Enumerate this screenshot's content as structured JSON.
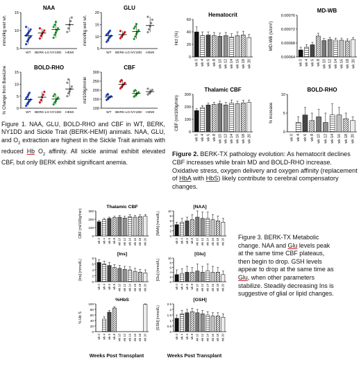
{
  "figure1": {
    "caption": "Figure 1.  NAA, GLU, BOLD-RHO and CBF in WT, BERK, NY1DD and Sickle Trait (BERK-HEMI) animals. NAA, GLU, and O2 extraction are highest in the Sickle Trait animals with reduced Hb O2 affinity.  All sickle animal exhibit elevated CBF, but only BERK exhibit significant anemia.",
    "caption_parts": {
      "a": "Figure 1.  NAA, GLU, BOLD-RHO and CBF in WT, BERK, NY1DD and Sickle Trait (BERK-HEMI) animals. NAA, GLU, and O",
      "sub": "2",
      "b": " extraction are highest in the Sickle Trait animals with reduced ",
      "hb": "Hb",
      "c": " O",
      "sub2": "2",
      "d": " affinity.  All sickle animal exhibit elevated CBF, but only BERK exhibit significant anemia."
    }
  },
  "figure2": {
    "caption_label": "Figure 2.",
    "caption_a": "  BERK-TX pathology evolution: As hematocrit declines CBF increases while brain MD and BOLD-RHO increase. Oxidative stress, oxygen delivery and oxygen affinity (replacement of ",
    "hba": "HbA",
    "caption_b": " with ",
    "hbs": "HbS",
    "caption_c": ") likely contribute to cerebral compensatory changes."
  },
  "figure3": {
    "caption_label": "Figure 3.",
    "caption_a": " BERK-TX Metabolic change.  NAA and ",
    "glu1": "Glu",
    "caption_b": " levels peak at the same time CBF plateaus, then begin to drop. GSH levels appear to drop at the same time as ",
    "glu2": "Glu",
    "caption_c": ", when other parameters stabilize. Steadily decreasing Ins is suggestive of glial or lipid changes.",
    "xlabel_left": "Weeks Post Transplant",
    "xlabel_right": "Weeks Post Transplant"
  },
  "chart_data": [
    {
      "id": "f1-naa",
      "type": "scatter",
      "title": "NAA",
      "ylabel": "mmol/kg wet wt.",
      "categories": [
        "WT",
        "BERK-LG",
        "NY1DD",
        "HEMI"
      ],
      "ylim": [
        5,
        15
      ],
      "yticks": [
        5,
        10,
        15
      ],
      "colors": [
        "#1f3fbf",
        "#d01818",
        "#1a9a2a",
        "#888888"
      ],
      "means": [
        8.6,
        9.3,
        10.3,
        11.6
      ],
      "points": [
        [
          6.2,
          7,
          7.5,
          8,
          8.3,
          8.6,
          9,
          9.4,
          9.8,
          10.3,
          11
        ],
        [
          7.8,
          8.5,
          9,
          9.5,
          10,
          10.6
        ],
        [
          8,
          8.8,
          9.4,
          10,
          10.6,
          11,
          11.6,
          12.4
        ],
        [
          9.6,
          10.6,
          11.6,
          12.6,
          13.6
        ]
      ]
    },
    {
      "id": "f1-glu",
      "type": "scatter",
      "title": "GLU",
      "ylabel": "mmol/kg wet wt.",
      "categories": [
        "WT",
        "BERK-LG",
        "NY1DD",
        "HEMI"
      ],
      "ylim": [
        5,
        20
      ],
      "yticks": [
        5,
        10,
        15,
        20
      ],
      "colors": [
        "#1f3fbf",
        "#d01818",
        "#1a9a2a",
        "#888888"
      ],
      "means": [
        10.3,
        10.8,
        12.1,
        14.6
      ],
      "points": [
        [
          7.8,
          8.5,
          9.3,
          9.8,
          10.3,
          10.8,
          11.2,
          11.8,
          12.4
        ],
        [
          9.3,
          10,
          10.6,
          11.2,
          11.8,
          12.3
        ],
        [
          9,
          10,
          11,
          11.8,
          12.6,
          13.4,
          14.2,
          15.2
        ],
        [
          11.8,
          13,
          14.2,
          15.6,
          17,
          18.2
        ]
      ]
    },
    {
      "id": "f1-bold",
      "type": "scatter",
      "title": "BOLD-RHO",
      "ylabel": "% Change from BaseLine",
      "categories": [
        "WT",
        "BERK-LG",
        "NY1DD",
        "HEMI"
      ],
      "ylim": [
        0,
        15
      ],
      "yticks": [
        0,
        5,
        10,
        15
      ],
      "colors": [
        "#1f3fbf",
        "#d01818",
        "#1a9a2a",
        "#888888"
      ],
      "means": [
        3.6,
        4.6,
        3.8,
        8
      ],
      "points": [
        [
          1,
          1.8,
          2.4,
          3,
          3.6,
          4.2,
          4.8,
          5.6,
          6.4
        ],
        [
          2.4,
          3.4,
          4.6,
          5.6,
          6.8
        ],
        [
          1.6,
          2.4,
          3,
          3.8,
          4.4,
          5,
          5.8
        ],
        [
          5,
          6.2,
          7,
          8,
          9,
          10.6,
          12
        ]
      ]
    },
    {
      "id": "f1-cbf",
      "type": "scatter",
      "title": "CBF",
      "ylabel": "ml/100g/mmin",
      "categories": [
        "WT",
        "BERK-LG",
        "NY1DD",
        "HEMI"
      ],
      "ylim": [
        100,
        300
      ],
      "yticks": [
        100,
        150,
        200,
        250,
        300
      ],
      "colors": [
        "#1f3fbf",
        "#d01818",
        "#1a9a2a",
        "#888888"
      ],
      "means": [
        162,
        232,
        182,
        192
      ],
      "points": [
        [
          146,
          152,
          158,
          162,
          166,
          172,
          178
        ],
        [
          210,
          218,
          226,
          232,
          240,
          248,
          256
        ],
        [
          164,
          170,
          176,
          182,
          188,
          194,
          200
        ],
        [
          176,
          182,
          188,
          194,
          202,
          208
        ]
      ]
    },
    {
      "id": "f2-hct",
      "type": "bar",
      "title": "Hematocrit",
      "ylabel": "Hct (%)",
      "categories": [
        "wk 0",
        "wk 4",
        "wk 6",
        "wk 8",
        "wk 10",
        "wk 12",
        "wk 14",
        "wk 16",
        "wk 18",
        "wk 20"
      ],
      "values": [
        40,
        34,
        35,
        34,
        33,
        34,
        32,
        34,
        35,
        31
      ],
      "errors": [
        8,
        6,
        5,
        5,
        5,
        5,
        5,
        6,
        6,
        5
      ],
      "ylim": [
        0,
        60
      ],
      "yticks": [
        0,
        20,
        40,
        60
      ]
    },
    {
      "id": "f2-mdwb",
      "type": "bar",
      "title": "MD-WB",
      "ylabel": "MD-WB (s/cm²)",
      "categories": [
        "wk 0",
        "wk 4",
        "wk 6",
        "wk 8",
        "wk 10",
        "wk 12",
        "wk 14",
        "wk 16",
        "wk 18",
        "wk 20"
      ],
      "values": [
        0.00066,
        0.000668,
        0.000675,
        0.0007,
        0.000687,
        0.00069,
        0.000688,
        0.000688,
        0.000686,
        0.00069
      ],
      "errors": [
        8e-06,
        7e-06,
        7e-06,
        8e-06,
        6e-06,
        6e-06,
        6e-06,
        6e-06,
        6e-06,
        6e-06
      ],
      "ylim": [
        0.00064,
        0.00076
      ],
      "yticks": [
        0.00064,
        0.00068,
        0.00072,
        0.00076
      ],
      "ytick_labels": [
        "0.00064",
        "0.00068",
        "0.00072",
        "0.00076"
      ]
    },
    {
      "id": "f2-tcbf",
      "type": "bar",
      "title": "Thalamic CBF",
      "ylabel": "CBF (ml/100g/min)",
      "categories": [
        "wk 0",
        "wk 4",
        "wk 6",
        "wk 8",
        "wk 10",
        "wk 12",
        "wk 14",
        "wk 16",
        "wk 18",
        "wk 20"
      ],
      "values": [
        170,
        195,
        215,
        220,
        225,
        215,
        230,
        225,
        232,
        235
      ],
      "errors": [
        15,
        15,
        15,
        15,
        20,
        20,
        25,
        20,
        20,
        20
      ],
      "ylim": [
        0,
        300
      ],
      "yticks": [
        0,
        100,
        200,
        300
      ]
    },
    {
      "id": "f2-bold",
      "type": "bar",
      "title": "BOLD-RHO",
      "ylabel": "% increase",
      "categories": [
        "wk 0",
        "wk 4",
        "wk 6",
        "wk 8",
        "wk 10",
        "wk 12",
        "wk 14",
        "wk 16",
        "wk 18",
        "wk 20"
      ],
      "values": [
        0,
        2.5,
        4.5,
        3,
        4,
        2.5,
        4.5,
        4.5,
        3.5,
        3
      ],
      "errors": [
        0,
        1.5,
        2,
        2,
        2,
        2.5,
        3,
        2,
        1.5,
        1
      ],
      "ylim": [
        0,
        10
      ],
      "yticks": [
        0,
        5,
        10
      ]
    },
    {
      "id": "f3-tcbf",
      "type": "bar",
      "title": "Thalamic CBF",
      "ylabel": "CBF (ml/100g/min)",
      "categories": [
        "wk 0",
        "wk 4",
        "wk 6",
        "wk 8",
        "wk 10",
        "wk 12",
        "wk 14",
        "wk 16",
        "wk 18",
        "wk 20"
      ],
      "values": [
        170,
        195,
        210,
        220,
        225,
        215,
        230,
        225,
        232,
        235
      ],
      "errors": [
        15,
        15,
        15,
        15,
        20,
        20,
        25,
        20,
        20,
        20
      ],
      "ylim": [
        0,
        300
      ],
      "yticks": [
        0,
        100,
        200,
        300
      ]
    },
    {
      "id": "f3-naa",
      "type": "bar",
      "title": "[NAA]",
      "ylabel": "[NAA] (mmol/L)",
      "categories": [
        "wk 0",
        "wk 4",
        "wk 6",
        "wk 8",
        "wk 10",
        "wk 12",
        "wk 14",
        "wk 16",
        "wk 18",
        "wk 20"
      ],
      "values": [
        4.5,
        5.5,
        6,
        6.5,
        7.5,
        7,
        7,
        6.5,
        6,
        5.5
      ],
      "errors": [
        1,
        1.5,
        1.5,
        2,
        3,
        2.5,
        2.5,
        2,
        2,
        1.5
      ],
      "ylim": [
        0,
        10
      ],
      "yticks": [
        0,
        2,
        4,
        6,
        8,
        10
      ]
    },
    {
      "id": "f3-ins",
      "type": "bar",
      "title": "[Ins]",
      "ylabel": "[Ins] (mmol/L)",
      "categories": [
        "wk 0",
        "wk 4",
        "wk 6",
        "wk 8",
        "wk 10",
        "wk 12",
        "wk 14",
        "wk 16",
        "wk 18",
        "wk 20"
      ],
      "values": [
        6.5,
        6,
        5.5,
        4.8,
        4.5,
        4.2,
        4,
        3.5,
        3.2,
        3
      ],
      "errors": [
        1,
        1,
        1,
        1,
        1,
        1,
        1,
        1,
        1,
        1
      ],
      "ylim": [
        0,
        8
      ],
      "yticks": [
        0,
        2,
        4,
        6,
        8
      ]
    },
    {
      "id": "f3-glu",
      "type": "bar",
      "title": "[Glu]",
      "ylabel": "[Glu] (mmol/L)",
      "categories": [
        "wk 0",
        "wk 4",
        "wk 6",
        "wk 8",
        "wk 10",
        "wk 12",
        "wk 14",
        "wk 16",
        "wk 18",
        "wk 20"
      ],
      "values": [
        3,
        3.5,
        4,
        4,
        4.5,
        4,
        4.5,
        4,
        4,
        3
      ],
      "errors": [
        2,
        2,
        2.5,
        2,
        3,
        2.5,
        3,
        2.5,
        2,
        1.5
      ],
      "ylim": [
        0,
        10
      ],
      "yticks": [
        0,
        2,
        4,
        6,
        8,
        10
      ]
    },
    {
      "id": "f3-hbs",
      "type": "bar",
      "title": "%HbS",
      "ylabel": "% Hb S",
      "categories": [
        "wk 0",
        "wk 4",
        "wk 6",
        "wk 8",
        "wk 10",
        "wk 12",
        "wk 14",
        "wk 16",
        "wk 18",
        "wk 20"
      ],
      "values": [
        0,
        45,
        70,
        85,
        0,
        0,
        0,
        0,
        0,
        98
      ],
      "errors": [
        0,
        8,
        6,
        5,
        0,
        0,
        0,
        0,
        0,
        2
      ],
      "ylim": [
        0,
        100
      ],
      "yticks": [
        0,
        20,
        40,
        60,
        80,
        100
      ]
    },
    {
      "id": "f3-gsh",
      "type": "bar",
      "title": "[GSH]",
      "ylabel": "[GSH] (mmol/L)",
      "categories": [
        "wk 0",
        "wk 4",
        "wk 6",
        "wk 8",
        "wk 10",
        "wk 12",
        "wk 14",
        "wk 16",
        "wk 18",
        "wk 20"
      ],
      "values": [
        1.2,
        1.6,
        1.7,
        1.8,
        1.7,
        1.6,
        1.5,
        1.4,
        1.4,
        1.3
      ],
      "errors": [
        0.3,
        0.3,
        0.3,
        0.3,
        0.3,
        0.3,
        0.3,
        0.3,
        0.3,
        0.3
      ],
      "ylim": [
        0,
        2.5
      ],
      "yticks": [
        0,
        0.5,
        1,
        1.5,
        2,
        2.5
      ]
    }
  ]
}
